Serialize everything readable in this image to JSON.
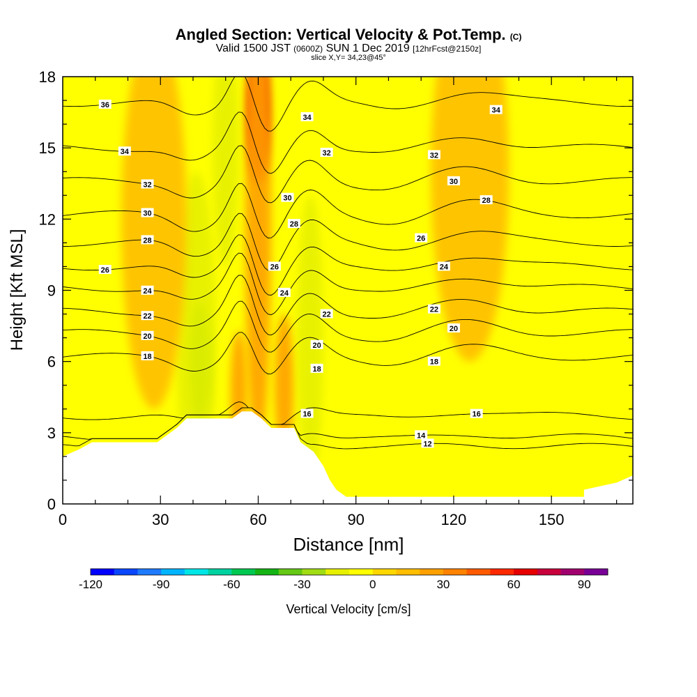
{
  "title": {
    "main": "Angled Section: Vertical Velocity & Pot.Temp.",
    "main_suffix": "(C)",
    "valid_prefix": "Valid 1500 JST",
    "valid_zulu": "(0600Z)",
    "valid_date": "SUN 1 Dec 2019",
    "forecast": "[12hrFcst@2150z]",
    "slice": "slice X,Y= 34,23@45°"
  },
  "chart_data": {
    "type": "heatmap",
    "xlabel": "Distance [nm]",
    "ylabel": "Height [Kft MSL]",
    "xlim": [
      0,
      175
    ],
    "ylim": [
      0,
      18
    ],
    "x_ticks": [
      0,
      30,
      60,
      90,
      120,
      150
    ],
    "y_ticks": [
      0,
      3,
      6,
      9,
      12,
      15,
      18
    ],
    "colorbar": {
      "label": "Vertical Velocity [cm/s]",
      "range": [
        -120,
        100
      ],
      "tick_values": [
        -120,
        -90,
        -60,
        -30,
        0,
        30,
        60,
        90
      ],
      "colors": [
        "#0000ff",
        "#0a46ff",
        "#1e7aff",
        "#00b4ff",
        "#00e6e6",
        "#00d2a0",
        "#00c850",
        "#14b414",
        "#64c814",
        "#a0dc14",
        "#e6f000",
        "#ffff00",
        "#ffd700",
        "#ffbe00",
        "#ffa000",
        "#ff8200",
        "#ff5a00",
        "#ff2800",
        "#e60000",
        "#c8003c",
        "#a0006e",
        "#780096"
      ]
    },
    "terrain": [
      [
        0,
        2.0
      ],
      [
        5,
        2.3
      ],
      [
        9,
        2.6
      ],
      [
        29,
        2.6
      ],
      [
        32,
        2.9
      ],
      [
        35,
        3.2
      ],
      [
        38,
        3.6
      ],
      [
        52,
        3.6
      ],
      [
        55,
        3.9
      ],
      [
        58,
        3.9
      ],
      [
        61,
        3.6
      ],
      [
        64,
        3.2
      ],
      [
        71,
        3.2
      ],
      [
        73,
        2.6
      ],
      [
        77,
        2.2
      ],
      [
        80,
        1.6
      ],
      [
        82,
        1.0
      ],
      [
        84,
        0.6
      ],
      [
        87,
        0.3
      ],
      [
        160,
        0.3
      ],
      [
        160,
        0.6
      ],
      [
        170,
        0.9
      ],
      [
        175,
        1.2
      ]
    ],
    "velocity_features": [
      {
        "x": 60,
        "y": 16.5,
        "w": 3.5,
        "h": 3,
        "value": 60
      },
      {
        "x": 60,
        "y": 12,
        "w": 4,
        "h": 10,
        "value": 25
      },
      {
        "x": 68,
        "y": 5,
        "w": 3,
        "h": 3,
        "value": 25
      },
      {
        "x": 54,
        "y": 4.8,
        "w": 2.5,
        "h": 2.5,
        "value": 20
      },
      {
        "x": 42,
        "y": 6,
        "w": 3,
        "h": 2.5,
        "value": -40
      },
      {
        "x": 41,
        "y": 7,
        "w": 6,
        "h": 7,
        "value": -20
      },
      {
        "x": 76,
        "y": 7,
        "w": 4,
        "h": 6,
        "value": -20
      },
      {
        "x": 50,
        "y": 15,
        "w": 4,
        "h": 5,
        "value": -15
      },
      {
        "x": 125,
        "y": 14,
        "w": 12,
        "h": 8,
        "value": 15
      },
      {
        "x": 28,
        "y": 12,
        "w": 10,
        "h": 8,
        "value": 12
      }
    ],
    "isentropes": [
      {
        "theta": 12,
        "base": 2.4,
        "label_x": 112
      },
      {
        "theta": 14,
        "base": 2.8,
        "label_x": 110
      },
      {
        "theta": 16,
        "base": 3.7,
        "label_x": 127
      },
      {
        "theta": 18,
        "base": 6.2,
        "label_x": 26
      },
      {
        "theta": 20,
        "base": 7.2,
        "label_x": 26
      },
      {
        "theta": 22,
        "base": 8.1,
        "label_x": 26
      },
      {
        "theta": 24,
        "base": 9.1,
        "label_x": 26
      },
      {
        "theta": 26,
        "base": 10.0,
        "label_x": 13
      },
      {
        "theta": 28,
        "base": 11.0,
        "label_x": 26
      },
      {
        "theta": 30,
        "base": 12.2,
        "label_x": 26
      },
      {
        "theta": 32,
        "base": 13.6,
        "label_x": 26
      },
      {
        "theta": 34,
        "base": 15.0,
        "label_x": 19
      },
      {
        "theta": 36,
        "base": 16.9,
        "label_x": 13
      }
    ],
    "extra_contour_labels": [
      {
        "text": "16",
        "x": 75,
        "y": 3.8
      },
      {
        "text": "18",
        "x": 78,
        "y": 5.7
      },
      {
        "text": "20",
        "x": 78,
        "y": 6.7
      },
      {
        "text": "22",
        "x": 81,
        "y": 8.0
      },
      {
        "text": "24",
        "x": 68,
        "y": 8.9
      },
      {
        "text": "26",
        "x": 65,
        "y": 10.0
      },
      {
        "text": "28",
        "x": 71,
        "y": 11.8
      },
      {
        "text": "30",
        "x": 69,
        "y": 12.9
      },
      {
        "text": "32",
        "x": 81,
        "y": 14.8
      },
      {
        "text": "34",
        "x": 75,
        "y": 16.3
      },
      {
        "text": "18",
        "x": 114,
        "y": 6.0
      },
      {
        "text": "20",
        "x": 120,
        "y": 7.4
      },
      {
        "text": "22",
        "x": 114,
        "y": 8.2
      },
      {
        "text": "24",
        "x": 117,
        "y": 10.0
      },
      {
        "text": "26",
        "x": 110,
        "y": 11.2
      },
      {
        "text": "28",
        "x": 130,
        "y": 12.8
      },
      {
        "text": "30",
        "x": 120,
        "y": 13.6
      },
      {
        "text": "32",
        "x": 114,
        "y": 14.7
      },
      {
        "text": "34",
        "x": 133,
        "y": 16.6
      }
    ]
  }
}
